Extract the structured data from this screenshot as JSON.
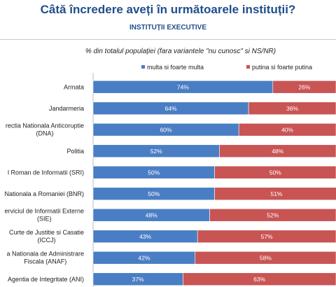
{
  "header": {
    "title": "Câtă încredere aveți în următoarele instituții?",
    "subtitle": "INSTITUȚII EXECUTIVE"
  },
  "chart_data": {
    "type": "bar",
    "stacked": true,
    "orientation": "horizontal",
    "title": "Câtă încredere aveți în următoarele instituții?",
    "subtitle": "INSTITUȚII EXECUTIVE",
    "note": "% din totalul populației (fara variantele \"nu cunosc\" si NS/NR)",
    "legend_position": "top",
    "categories": [
      "Armata",
      "Jandarmeria",
      "rectia Nationala Anticoruptie (DNA)",
      "Politia",
      "l Roman de Informatii (SRI)",
      "Nationala a Romaniei (BNR)",
      "erviciul de Informatii Externe (SIE)",
      "Curte de Justitie si Casatie (ICCJ)",
      "a Nationala de Administrare Fiscala (ANAF)",
      "Agentia de Integritate (ANI)"
    ],
    "category_lines": [
      [
        "Armata"
      ],
      [
        "Jandarmeria"
      ],
      [
        "rectia Nationala Anticoruptie",
        "(DNA)"
      ],
      [
        "Politia"
      ],
      [
        "l Roman de Informatii (SRI)"
      ],
      [
        "Nationala a Romaniei (BNR)"
      ],
      [
        "erviciul de Informatii Externe",
        "(SIE)"
      ],
      [
        "Curte de Justitie si Casatie",
        "(ICCJ)"
      ],
      [
        "a Nationala de Administrare",
        "Fiscala (ANAF)"
      ],
      [
        "Agentia de Integritate (ANI)"
      ]
    ],
    "series": [
      {
        "name": "multa si foarte multa",
        "color": "#4a7ec4",
        "values": [
          74,
          64,
          60,
          52,
          50,
          50,
          48,
          43,
          42,
          37
        ]
      },
      {
        "name": "putina si foarte putina",
        "color": "#c95454",
        "values": [
          26,
          36,
          40,
          48,
          50,
          51,
          52,
          57,
          58,
          63
        ]
      }
    ],
    "value_labels": [
      [
        "74%",
        "64%",
        "60%",
        "52%",
        "50%",
        "50%",
        "48%",
        "43%",
        "42%",
        "37%"
      ],
      [
        "26%",
        "36%",
        "40%",
        "48%",
        "50%",
        "51%",
        "52%",
        "57%",
        "58%",
        "63%"
      ]
    ],
    "xlim": [
      0,
      100
    ],
    "grid": false
  }
}
